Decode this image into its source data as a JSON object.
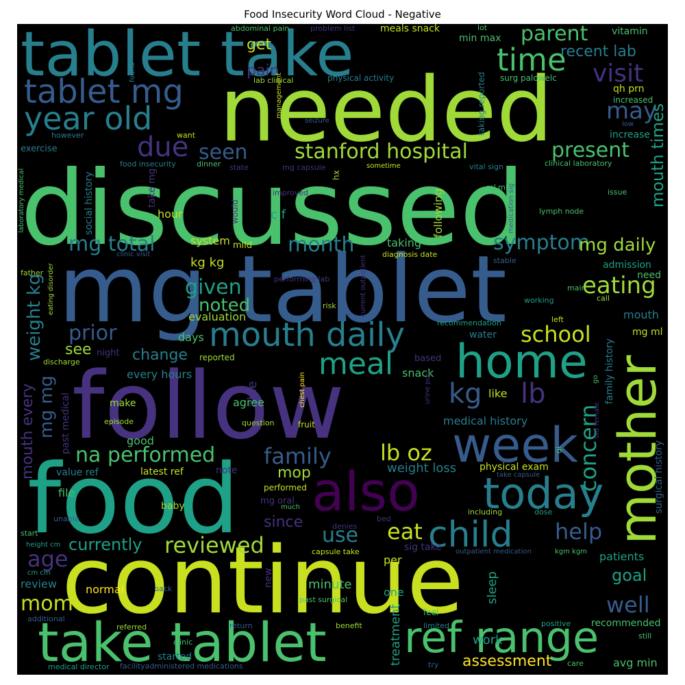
{
  "title": "Food Insecurity Word Cloud - Negative",
  "words": {
    "discussed": "discussed",
    "continue": "continue",
    "needed": "needed",
    "mg_tablet": "mg tablet",
    "follow": "follow",
    "food": "food",
    "tablet_take": "tablet take",
    "take_tablet": "take tablet",
    "also": "also",
    "home": "home",
    "mother": "mother",
    "week": "week",
    "today": "today",
    "ref_range": "ref range",
    "child": "child",
    "time": "time",
    "tablet_mg": "tablet mg",
    "year_old": "year old",
    "mouth_daily": "mouth daily",
    "meal": "meal",
    "kg": "kg",
    "lb": "lb",
    "stanford_hospital": "stanford hospital",
    "parent": "parent",
    "due": "due",
    "visit": "visit",
    "present": "present",
    "seen": "seen",
    "may": "may",
    "mouth_times": "mouth times",
    "eating": "eating",
    "symptom": "symptom",
    "mg_total": "mg total",
    "month": "month",
    "mg_daily": "mg daily",
    "na_performed": "na performed",
    "school": "school",
    "prior": "prior",
    "concern": "concern",
    "family": "family",
    "lb_oz": "lb oz",
    "eat": "eat",
    "use": "use",
    "reviewed": "reviewed",
    "help": "help",
    "well": "well",
    "assessment": "assessment",
    "age": "age",
    "mom": "mom",
    "given": "given",
    "noted": "noted",
    "currently": "currently",
    "weight_kg": "weight kg",
    "mg_mg": "mg mg",
    "mouth_every": "mouth every",
    "recent_lab": "recent lab",
    "get": "get",
    "pain": "pain",
    "change": "change",
    "see": "see",
    "mop": "mop",
    "since": "since",
    "goal": "goal",
    "minute": "minute",
    "sleep": "sleep",
    "work": "work",
    "treatment": "treatment",
    "avg_min": "avg min",
    "evaluation": "evaluation",
    "every_hours": "every hours",
    "weight_loss": "weight loss",
    "medical_history": "medical history",
    "like": "like",
    "snack": "snack",
    "kg_kg": "kg kg",
    "c_f": "c f",
    "system": "system",
    "taking": "taking",
    "following": "following",
    "hour": "hour",
    "days": "days",
    "able": "able",
    "agree": "agree",
    "normal": "normal",
    "file": "file",
    "baby": "baby",
    "good": "good",
    "make": "make",
    "review": "review",
    "per": "per",
    "one": "one",
    "new": "new",
    "sig_take": "sig take",
    "latest_ref": "latest ref",
    "value_ref": "value ref",
    "physical_exam": "physical exam",
    "note": "note",
    "past_medical": "past medical",
    "social_history": "social history",
    "family_history": "family history",
    "surgical_history": "surgical history",
    "water": "water",
    "mouth_small": "mouth",
    "mg_ml": "mg ml",
    "need": "need",
    "admission": "admission",
    "patients": "patients",
    "recommended": "recommended",
    "vitamin": "vitamin",
    "qh_prn": "qh prn",
    "increased": "increased",
    "increase": "increase",
    "min_max": "min max",
    "lot": "lot",
    "meals_snack": "meals snack",
    "surg_palowelc": "surg palowelc",
    "taking_reported": "taking reported",
    "physical_activity": "physical activity",
    "lab_clinical": "lab clinical",
    "abdominal_pain": "abdominal pain",
    "problem_list": "problem list",
    "exercise": "exercise",
    "however": "however",
    "want": "want",
    "food_insecurity": "food insecurity",
    "dinner": "dinner",
    "state": "state",
    "mg_capsule": "mg capsule",
    "sometime": "sometime",
    "vital_sign": "vital sign",
    "clinical_laboratory": "clinical laboratory",
    "hx": "hx",
    "take_mg": "take mg",
    "would": "would",
    "improved": "improved",
    "mild": "mild",
    "clinic_visit": "clinic visit",
    "diagnosis_date": "diagnosis date",
    "stable": "stable",
    "performing_lab": "performing lab",
    "current_outpatient": "current outpatient",
    "working": "working",
    "main": "main",
    "call": "call",
    "recommendation": "recommendation",
    "left": "left",
    "risk": "risk",
    "night": "night",
    "reported": "reported",
    "based": "based",
    "discharge": "discharge",
    "chest_pain": "chest pain",
    "urine_poc": "urine poc",
    "question": "question",
    "fruit": "fruit",
    "episode": "episode",
    "performed": "performed",
    "mg_oral": "mg oral",
    "much": "much",
    "unable": "unable",
    "start": "start",
    "height_cm": "height cm",
    "cm_cm": "cm cm",
    "additional": "additional",
    "referred": "referred",
    "back": "back",
    "clinic": "clinic",
    "started": "started",
    "medical_director": "medical director",
    "facility_meds": "facilityadministered medications",
    "return": "return",
    "benefit": "benefit",
    "limited": "limited",
    "try": "try",
    "care": "care",
    "positive": "positive",
    "still": "still",
    "feel": "feel",
    "past_surgical": "past surgical",
    "capsule_take": "capsule take",
    "denies": "denies",
    "bed": "bed",
    "including": "including",
    "dose": "dose",
    "outpatient_medication": "outpatient medication",
    "kgm_kgm": "kgm kgm",
    "take_capsule": "take capsule",
    "ml_ml": "ml ml",
    "medication_sig": "medication sig",
    "lymph_node": "lymph node",
    "issue": "issue",
    "low": "low",
    "seizure": "seizure",
    "management": "management",
    "found": "found",
    "laboratory_medical": "laboratory medical",
    "eating_disorder": "eating disorder",
    "father": "father",
    "go": "go",
    "gi": "gi",
    "old_female": "old female"
  },
  "colors": {
    "background": "#000000",
    "yellow_green": "#c8e020",
    "light_green": "#a0da39",
    "green": "#4ac16d",
    "teal_green": "#1fa187",
    "teal": "#277f8e",
    "blue": "#365c8d",
    "indigo": "#46327e",
    "purple": "#440154",
    "yellow": "#fde725"
  }
}
